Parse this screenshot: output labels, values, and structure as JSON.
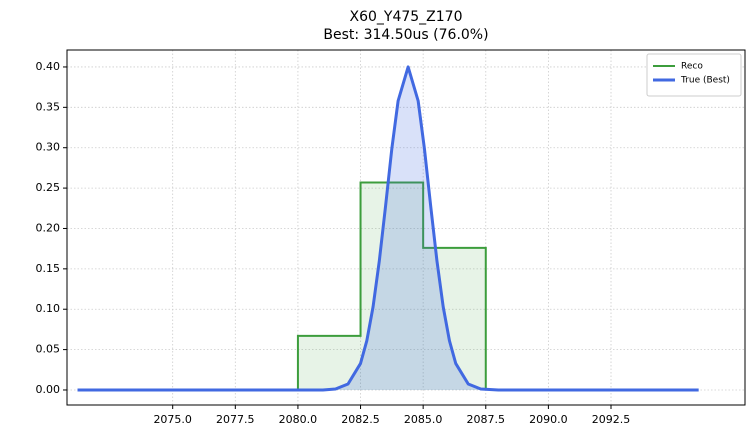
{
  "chart_data": {
    "type": "line",
    "title": "X60_Y475_Z170",
    "subtitle": "Best: 314.50us (76.0%)",
    "xlim": [
      2070.78,
      2097.85
    ],
    "ylim": [
      -0.0186,
      0.421
    ],
    "xticks": [
      {
        "value": 2075,
        "label": "2075.0"
      },
      {
        "value": 2077.5,
        "label": "2077.5"
      },
      {
        "value": 2080,
        "label": "2080.0"
      },
      {
        "value": 2082.5,
        "label": "2082.5"
      },
      {
        "value": 2085,
        "label": "2085.0"
      },
      {
        "value": 2087.5,
        "label": "2087.5"
      },
      {
        "value": 2090,
        "label": "2090.0"
      },
      {
        "value": 2092.5,
        "label": "2092.5"
      }
    ],
    "yticks": [
      {
        "value": 0,
        "label": "0.00"
      },
      {
        "value": 0.05,
        "label": "0.05"
      },
      {
        "value": 0.1,
        "label": "0.10"
      },
      {
        "value": 0.15,
        "label": "0.15"
      },
      {
        "value": 0.2,
        "label": "0.20"
      },
      {
        "value": 0.25,
        "label": "0.25"
      },
      {
        "value": 0.3,
        "label": "0.30"
      },
      {
        "value": 0.35,
        "label": "0.35"
      },
      {
        "value": 0.4,
        "label": "0.40"
      }
    ],
    "grid": true,
    "legend": "upper right",
    "series": [
      {
        "name": "Reco",
        "color": "#3c9d3c",
        "bins": [
          2080,
          2082.5,
          2085,
          2087.5
        ],
        "values": [
          0.067,
          0.257,
          0.176
        ]
      },
      {
        "name": "True (Best)",
        "color": "#4169e1",
        "x": [
          2071.2,
          2078,
          2080,
          2081,
          2081.5,
          2082,
          2082.5,
          2082.75,
          2083,
          2083.25,
          2083.5,
          2083.75,
          2084,
          2084.4,
          2084.8,
          2085.05,
          2085.3,
          2085.55,
          2085.8,
          2086.05,
          2086.3,
          2086.8,
          2087.3,
          2088,
          2096
        ],
        "values": [
          0,
          0,
          0,
          0,
          0.0012,
          0.0074,
          0.0329,
          0.061,
          0.103,
          0.16,
          0.228,
          0.299,
          0.358,
          0.4,
          0.358,
          0.299,
          0.228,
          0.16,
          0.103,
          0.061,
          0.0329,
          0.0074,
          0.0012,
          0,
          0
        ]
      }
    ]
  }
}
